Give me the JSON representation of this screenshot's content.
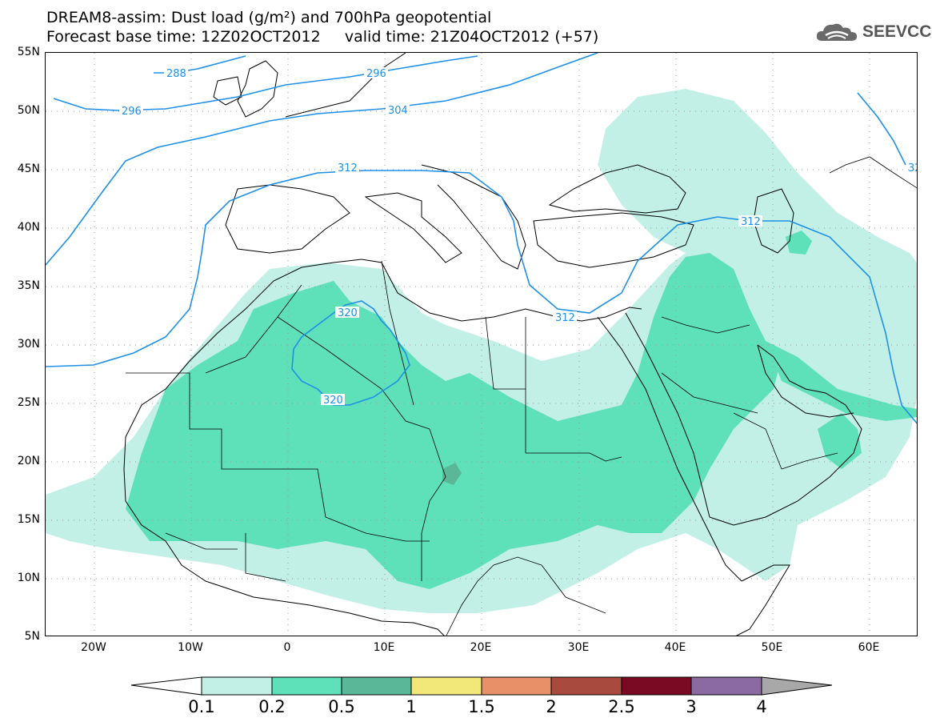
{
  "header": {
    "title_line1": "DREAM8-assim: Dust load (g/m²) and 700hPa geopotential",
    "title_line2": "Forecast base time: 12Z02OCT2012     valid time: 21Z04OCT2012 (+57)",
    "logo_text": "SEEVCCC"
  },
  "map": {
    "projection": "lat-lon",
    "lon_range": [
      -25,
      65
    ],
    "lat_range": [
      5,
      55
    ],
    "lat_labels": [
      "55N",
      "50N",
      "45N",
      "40N",
      "35N",
      "30N",
      "25N",
      "20N",
      "15N",
      "10N",
      "5N"
    ],
    "lon_labels": [
      "20W",
      "10W",
      "0",
      "10E",
      "20E",
      "30E",
      "40E",
      "50E",
      "60E"
    ],
    "contour_labels": [
      "288",
      "296",
      "296",
      "304",
      "312",
      "312",
      "312",
      "320",
      "320",
      "32"
    ],
    "colors": {
      "level_0_1": "#c2f0e6",
      "level_0_2": "#5ee0b8",
      "level_0_5": "#5ab898",
      "coastline": "#000000",
      "geopotential": "#1e90e8"
    }
  },
  "legend": {
    "title": "",
    "levels": [
      "0.1",
      "0.2",
      "0.5",
      "1",
      "1.5",
      "2",
      "2.5",
      "3",
      "4"
    ],
    "colors": [
      "#ffffff",
      "#c2f0e6",
      "#5ee0b8",
      "#5ab898",
      "#f2e87a",
      "#e89068",
      "#a84a3e",
      "#7a0a24",
      "#8a6aa0",
      "#a8a8a8"
    ]
  }
}
